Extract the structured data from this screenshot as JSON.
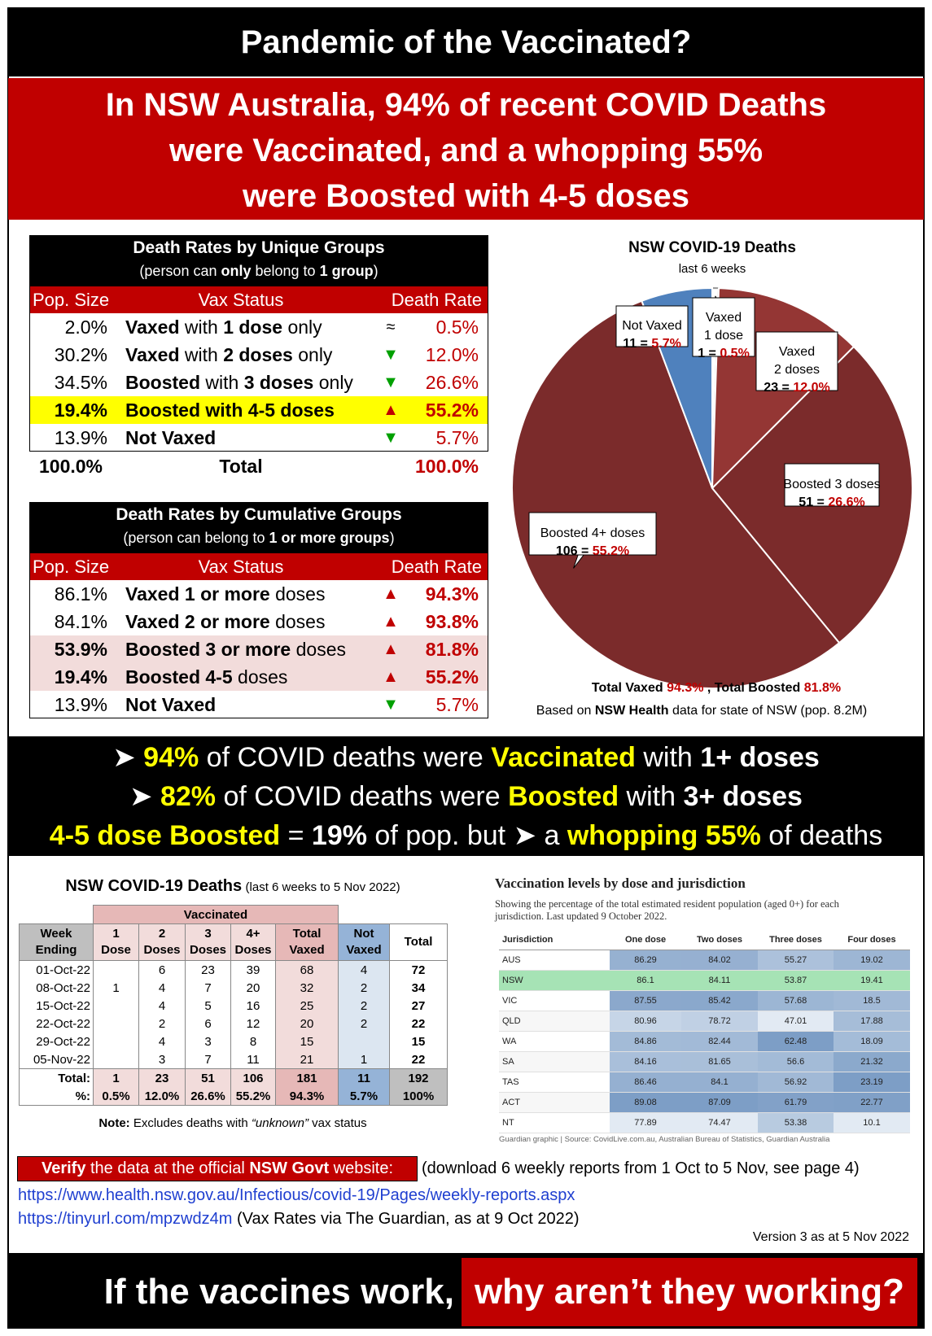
{
  "header": {
    "title": "Pandemic of the Vaccinated?",
    "headline": [
      "In NSW Australia, 94% of recent COVID Deaths",
      "were Vaccinated, and a whopping 55%",
      "were Boosted with 4-5 doses"
    ]
  },
  "unique_groups": {
    "title": "Death Rates by Unique Groups",
    "subtitle": [
      {
        "text": "(person can "
      },
      {
        "text": "only",
        "style": "bold"
      },
      {
        "text": " belong to "
      },
      {
        "text": "1 group",
        "style": "bold"
      },
      {
        "text": ")"
      }
    ],
    "columns": [
      "Pop. Size",
      "Vax Status",
      "Death Rate"
    ],
    "rows": [
      {
        "pop": "2.0%",
        "status": [
          {
            "text": "Vaxed",
            "style": "bold"
          },
          {
            "text": " with "
          },
          {
            "text": "1 dose",
            "style": "bold"
          },
          {
            "text": " only"
          }
        ],
        "trend": {
          "symbol": "≈",
          "color": "#000000"
        },
        "rate": "0.5%"
      },
      {
        "pop": "30.2%",
        "status": [
          {
            "text": "Vaxed",
            "style": "bold"
          },
          {
            "text": " with "
          },
          {
            "text": "2 doses",
            "style": "bold"
          },
          {
            "text": " only"
          }
        ],
        "trend": {
          "symbol": "▼",
          "color": "#00a000"
        },
        "rate": "12.0%"
      },
      {
        "pop": "34.5%",
        "status": [
          {
            "text": "Boosted",
            "style": "bold"
          },
          {
            "text": " with "
          },
          {
            "text": "3 doses",
            "style": "bold"
          },
          {
            "text": " only"
          }
        ],
        "trend": {
          "symbol": "▼",
          "color": "#00a000"
        },
        "rate": "26.6%"
      },
      {
        "pop": "19.4%",
        "status": [
          {
            "text": "Boosted",
            "style": "bold"
          },
          {
            "text": " with ",
            "style": "bold"
          },
          {
            "text": "4-5 doses",
            "style": "bold"
          }
        ],
        "trend": {
          "symbol": "▲",
          "color": "#c00000"
        },
        "rate": "55.2%",
        "pop_bold": true,
        "rate_bold": true,
        "highlight": "#ffff00"
      },
      {
        "pop": "13.9%",
        "status": [
          {
            "text": "Not Vaxed",
            "style": "bold"
          }
        ],
        "trend": {
          "symbol": "▼",
          "color": "#00a000"
        },
        "rate": "5.7%"
      }
    ],
    "total": {
      "pop": "100.0%",
      "label": "Total",
      "rate": "100.0%"
    }
  },
  "cumulative_groups": {
    "title": "Death Rates by Cumulative Groups",
    "subtitle": [
      {
        "text": "(person can belong to "
      },
      {
        "text": "1 or more groups",
        "style": "bold"
      },
      {
        "text": ")"
      }
    ],
    "columns": [
      "Pop. Size",
      "Vax Status",
      "Death Rate"
    ],
    "rows": [
      {
        "pop": "86.1%",
        "status": [
          {
            "text": "Vaxed 1 or more",
            "style": "bold"
          },
          {
            "text": " doses"
          }
        ],
        "trend": {
          "symbol": "▲",
          "color": "#c00000"
        },
        "rate": "94.3%",
        "rate_bold": true
      },
      {
        "pop": "84.1%",
        "status": [
          {
            "text": "Vaxed 2 or more",
            "style": "bold"
          },
          {
            "text": " doses"
          }
        ],
        "trend": {
          "symbol": "▲",
          "color": "#c00000"
        },
        "rate": "93.8%",
        "rate_bold": true
      },
      {
        "pop": "53.9%",
        "status": [
          {
            "text": "Boosted 3 or more",
            "style": "bold"
          },
          {
            "text": " doses"
          }
        ],
        "trend": {
          "symbol": "▲",
          "color": "#c00000"
        },
        "rate": "81.8%",
        "rate_bold": true,
        "pop_bold": true,
        "highlight": "#f2dcdb"
      },
      {
        "pop": "19.4%",
        "status": [
          {
            "text": "Boosted 4-5",
            "style": "bold"
          },
          {
            "text": " doses"
          }
        ],
        "trend": {
          "symbol": "▲",
          "color": "#c00000"
        },
        "rate": "55.2%",
        "rate_bold": true,
        "pop_bold": true,
        "highlight": "#f2dcdb"
      },
      {
        "pop": "13.9%",
        "status": [
          {
            "text": "Not Vaxed",
            "style": "bold"
          }
        ],
        "trend": {
          "symbol": "▼",
          "color": "#00a000"
        },
        "rate": "5.7%"
      }
    ]
  },
  "chart_data": {
    "type": "pie",
    "title": "NSW COVID-19 Deaths",
    "subtitle": "last 6 weeks",
    "labels": [
      [
        "Vaxed",
        "1 dose"
      ],
      [
        "Vaxed",
        "2 doses"
      ],
      [
        "Boosted 3 doses"
      ],
      [
        "Boosted 4+ doses"
      ],
      [
        "Not Vaxed"
      ]
    ],
    "values": [
      1,
      23,
      51,
      106,
      11
    ],
    "percent_labels": [
      "0.5%",
      "12.0%",
      "26.6%",
      "55.2%",
      "5.7%"
    ],
    "separator": " = ",
    "colors": [
      "#ffffff",
      "#943634",
      "#7b2b2b",
      "#7b2b2b",
      "#4f81bd"
    ],
    "notes": [
      [
        {
          "text": "Total Vaxed ",
          "style": "bold"
        },
        {
          "text": "94.3%",
          "style": "bold red"
        },
        {
          "text": " , Total Boosted ",
          "style": "bold"
        },
        {
          "text": "81.8%",
          "style": "bold red"
        }
      ],
      [
        {
          "text": "Based on "
        },
        {
          "text": "NSW Health",
          "style": "bold"
        },
        {
          "text": " data for state of NSW (pop. 8.2M)"
        }
      ]
    ]
  },
  "bullets": [
    [
      {
        "text": "➤ "
      },
      {
        "text": "94%",
        "style": "bold yellow"
      },
      {
        "text": " of COVID deaths were "
      },
      {
        "text": "Vaccinated",
        "style": "bold yellow"
      },
      {
        "text": " with "
      },
      {
        "text": "1+ doses",
        "style": "bold"
      }
    ],
    [
      {
        "text": "➤ "
      },
      {
        "text": "82%",
        "style": "bold yellow"
      },
      {
        "text": " of COVID deaths were "
      },
      {
        "text": "Boosted",
        "style": "bold yellow"
      },
      {
        "text": " with "
      },
      {
        "text": "3+ doses",
        "style": "bold"
      }
    ],
    [
      {
        "text": "4-5 dose Boosted",
        "style": "bold yellow"
      },
      {
        "text": " = "
      },
      {
        "text": "19%",
        "style": "bold"
      },
      {
        "text": " of pop. but ➤ a "
      },
      {
        "text": "whopping 55%",
        "style": "bold yellow"
      },
      {
        "text": " of deaths"
      }
    ]
  ],
  "deaths_table": {
    "title": "NSW COVID-19 Deaths",
    "title_note": "(last 6 weeks to 5 Nov 2022)",
    "group_header": "Vaccinated",
    "columns": [
      [
        "Week",
        "Ending"
      ],
      [
        "1",
        "Dose"
      ],
      [
        "2",
        "Doses"
      ],
      [
        "3",
        "Doses"
      ],
      [
        "4+",
        "Doses"
      ],
      [
        "Total",
        "Vaxed"
      ],
      [
        "Not",
        "Vaxed"
      ],
      [
        "Total"
      ]
    ],
    "rows": [
      [
        "01-Oct-22",
        null,
        6,
        23,
        39,
        68,
        4,
        72
      ],
      [
        "08-Oct-22",
        1,
        4,
        7,
        20,
        32,
        2,
        34
      ],
      [
        "15-Oct-22",
        null,
        4,
        5,
        16,
        25,
        2,
        27
      ],
      [
        "22-Oct-22",
        null,
        2,
        6,
        12,
        20,
        2,
        22
      ],
      [
        "29-Oct-22",
        null,
        4,
        3,
        8,
        15,
        null,
        15
      ],
      [
        "05-Nov-22",
        null,
        3,
        7,
        11,
        21,
        1,
        22
      ]
    ],
    "totals": [
      "Total:",
      1,
      23,
      51,
      106,
      181,
      11,
      192
    ],
    "percents": [
      "%:",
      "0.5%",
      "12.0%",
      "26.6%",
      "55.2%",
      "94.3%",
      "5.7%",
      "100%"
    ],
    "note": [
      {
        "text": "Note:",
        "style": "bold"
      },
      {
        "text": " Excludes deaths with "
      },
      {
        "text": "“unknown”",
        "style": "italic"
      },
      {
        "text": " vax status"
      }
    ]
  },
  "guardian_table": {
    "title": "Vaccination levels by dose and jurisdiction",
    "subtitle": "Showing the percentage of the total estimated resident population (aged 0+) for each jurisdiction. Last updated 9 October 2022.",
    "columns": [
      "Jurisdiction",
      "One dose",
      "Two doses",
      "Three doses",
      "Four doses"
    ],
    "rows": [
      [
        "AUS",
        86.29,
        84.02,
        55.27,
        19.02
      ],
      [
        "NSW",
        86.1,
        84.11,
        53.87,
        19.41
      ],
      [
        "VIC",
        87.55,
        85.42,
        57.68,
        18.5
      ],
      [
        "QLD",
        80.96,
        78.72,
        47.01,
        17.88
      ],
      [
        "WA",
        84.86,
        82.44,
        62.48,
        18.09
      ],
      [
        "SA",
        84.16,
        81.65,
        56.6,
        21.32
      ],
      [
        "TAS",
        86.46,
        84.1,
        56.92,
        23.19
      ],
      [
        "ACT",
        89.08,
        87.09,
        61.79,
        22.77
      ],
      [
        "NT",
        77.89,
        74.47,
        53.38,
        10.1
      ]
    ],
    "highlight_row": 1,
    "source": "Guardian graphic | Source: CovidLive.com.au, Australian Bureau of Statistics, Guardian Australia"
  },
  "verify": {
    "label": [
      {
        "text": "Verify",
        "style": "bold"
      },
      {
        "text": " the data at the official "
      },
      {
        "text": "NSW Govt",
        "style": "bold"
      },
      {
        "text": " website:"
      }
    ],
    "note": "(download 6 weekly reports from 1 Oct to 5 Nov, see page 4)",
    "link": "https://www.health.nsw.gov.au/Infectious/covid-19/Pages/weekly-reports.aspx",
    "short_link": "https://tinyurl.com/mpzwdz4m",
    "short_link_note": "(Vax Rates via The Guardian, as at 9 Oct 2022)",
    "version": "Version 3 as at 5 Nov 2022"
  },
  "footer": {
    "left": "If the vaccines work,",
    "right": "why aren’t they working?"
  }
}
